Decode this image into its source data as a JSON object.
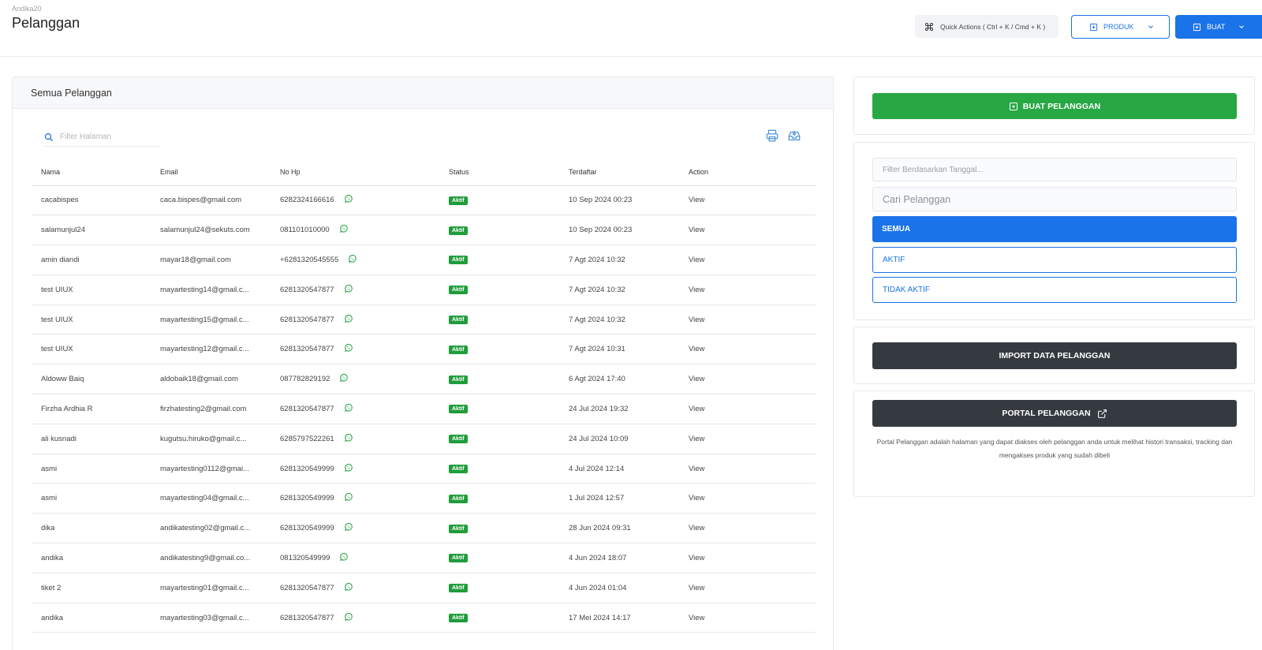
{
  "header": {
    "store_name": "Andika20",
    "page_title": "Pelanggan",
    "quick_actions_label": "Quick Actions ( Ctrl + K / Cmd + K )",
    "produk_label": "PRODUK",
    "buat_label": "BUAT"
  },
  "list_card": {
    "title": "Semua Pelanggan",
    "filter_placeholder": "Filter Halaman",
    "columns": [
      "Nama",
      "Email",
      "No Hp",
      "Status",
      "Terdaftar",
      "Action"
    ],
    "rows": [
      {
        "name": "cacabispes",
        "email": "caca.bispes@gmail.com",
        "phone": "6282324166616",
        "status": "Aktif",
        "registered": "10 Sep 2024 00:23",
        "action": "View"
      },
      {
        "name": "salamunjul24",
        "email": "salamunjul24@sekuts.com",
        "phone": "081101010000",
        "status": "Aktif",
        "registered": "10 Sep 2024 00:23",
        "action": "View"
      },
      {
        "name": "amin diandi",
        "email": "mayar18@gmail.com",
        "phone": "+6281320545555",
        "status": "Aktif",
        "registered": "7 Agt 2024 10:32",
        "action": "View"
      },
      {
        "name": "test UIUX",
        "email": "mayartesting14@gmail.c...",
        "phone": "6281320547877",
        "status": "Aktif",
        "registered": "7 Agt 2024 10:32",
        "action": "View"
      },
      {
        "name": "test UIUX",
        "email": "mayartesting15@gmail.c...",
        "phone": "6281320547877",
        "status": "Aktif",
        "registered": "7 Agt 2024 10:32",
        "action": "View"
      },
      {
        "name": "test UIUX",
        "email": "mayartesting12@gmail.c...",
        "phone": "6281320547877",
        "status": "Aktif",
        "registered": "7 Agt 2024 10:31",
        "action": "View"
      },
      {
        "name": "Aldoww Baiq",
        "email": "aldobaik18@gmail.com",
        "phone": "087782829192",
        "status": "Aktif",
        "registered": "6 Agt 2024 17:40",
        "action": "View"
      },
      {
        "name": "Firzha Ardhia R",
        "email": "firzhatesting2@gmail.com",
        "phone": "6281320547877",
        "status": "Aktif",
        "registered": "24 Jul 2024 19:32",
        "action": "View"
      },
      {
        "name": "ali kusnadi",
        "email": "kugutsu.hiruko@gmail.c...",
        "phone": "6285797522261",
        "status": "Aktif",
        "registered": "24 Jul 2024 10:09",
        "action": "View"
      },
      {
        "name": "asmi",
        "email": "mayartesting0112@gmai...",
        "phone": "6281320549999",
        "status": "Aktif",
        "registered": "4 Jul 2024 12:14",
        "action": "View"
      },
      {
        "name": "asmi",
        "email": "mayartesting04@gmail.c...",
        "phone": "6281320549999",
        "status": "Aktif",
        "registered": "1 Jul 2024 12:57",
        "action": "View"
      },
      {
        "name": "dika",
        "email": "andikatesting02@gmail.c...",
        "phone": "6281320549999",
        "status": "Aktif",
        "registered": "28 Jun 2024 09:31",
        "action": "View"
      },
      {
        "name": "andika",
        "email": "andikatesting9@gmail.co...",
        "phone": "081320549999",
        "status": "Aktif",
        "registered": "4 Jun 2024 18:07",
        "action": "View"
      },
      {
        "name": "tiket 2",
        "email": "mayartesting01@gmail.c...",
        "phone": "6281320547877",
        "status": "Aktif",
        "registered": "4 Jun 2024 01:04",
        "action": "View"
      },
      {
        "name": "andika",
        "email": "mayartesting03@gmail.c...",
        "phone": "6281320547877",
        "status": "Aktif",
        "registered": "17 Mei 2024 14:17",
        "action": "View"
      }
    ]
  },
  "side": {
    "create_button": "BUAT PELANGGAN",
    "date_filter_placeholder": "Filter Berdasarkan Tanggal...",
    "search_placeholder": "Cari Pelanggan",
    "filter_all": "SEMUA",
    "filter_active": "AKTIF",
    "filter_inactive": "TIDAK AKTIF",
    "import_button": "IMPORT DATA PELANGGAN",
    "portal_button": "PORTAL PELANGGAN",
    "portal_description": "Portal Pelanggan adalah halaman yang dapat diakses oleh pelanggan anda untuk melihat histori transaksi, tracking dan mengakses produk yang sudah dibeli"
  },
  "colors": {
    "primary": "#1a73e8",
    "success": "#28a745",
    "dark": "#343a40",
    "whatsapp": "#25a244"
  },
  "icons": [
    "command-icon",
    "plus-square-icon",
    "chevron-down-icon",
    "search-icon",
    "printer-icon",
    "download-inbox-icon",
    "whatsapp-icon",
    "external-link-icon"
  ]
}
